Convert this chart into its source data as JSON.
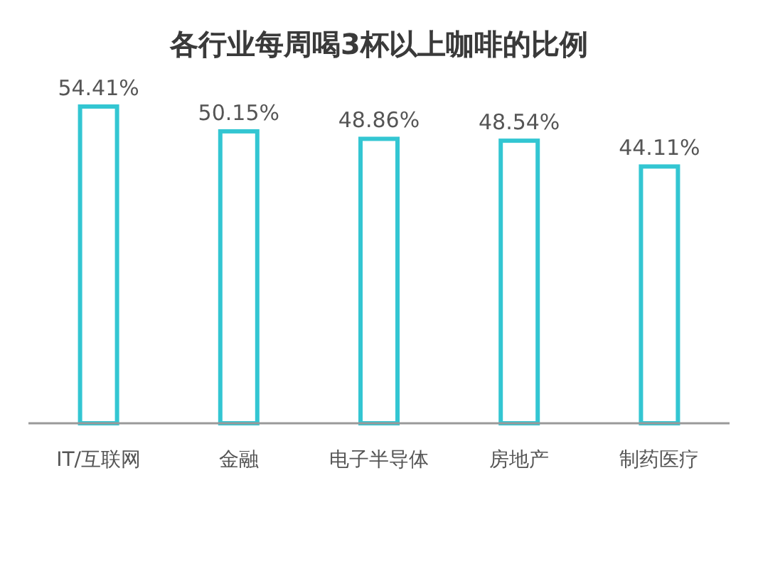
{
  "chart_data": {
    "type": "bar",
    "title": "各行业每周喝3杯以上咖啡的比例",
    "categories": [
      "IT/互联网",
      "金融",
      "电子半导体",
      "房地产",
      "制药医疗"
    ],
    "values": [
      54.41,
      50.15,
      48.86,
      48.54,
      44.11
    ],
    "value_labels": [
      "54.41%",
      "50.15%",
      "48.86%",
      "48.54%",
      "44.11%"
    ],
    "color": "#33c6d2"
  }
}
